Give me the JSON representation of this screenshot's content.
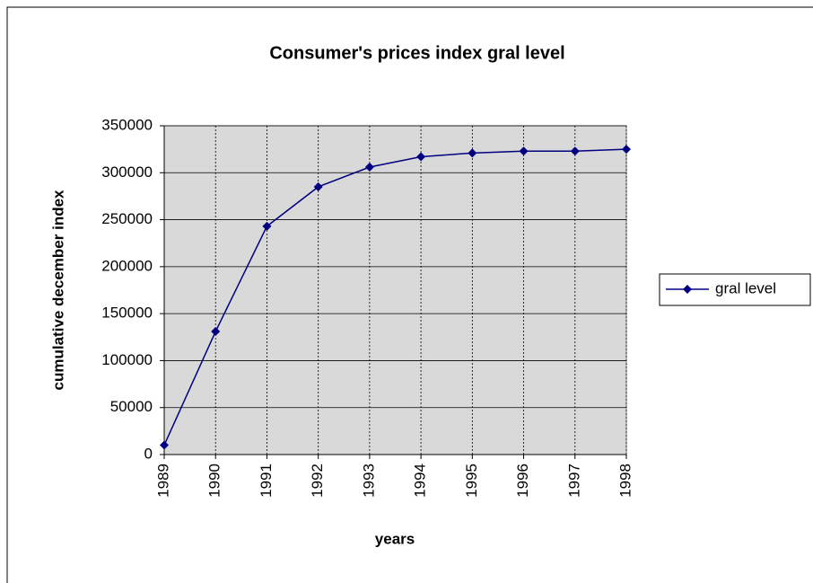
{
  "chart_data": {
    "type": "line",
    "title": "Consumer's prices index gral level",
    "x_label": "years",
    "y_label": "cumulative december index",
    "categories": [
      "1989",
      "1990",
      "1991",
      "1992",
      "1993",
      "1994",
      "1995",
      "1996",
      "1997",
      "1998"
    ],
    "series": [
      {
        "name": "gral level",
        "color": "#000080",
        "values": [
          10000,
          131000,
          243000,
          285000,
          306000,
          317000,
          321000,
          323000,
          323000,
          325000
        ]
      }
    ],
    "ylim": [
      0,
      350000
    ],
    "yticks": [
      0,
      50000,
      100000,
      150000,
      200000,
      250000,
      300000,
      350000
    ],
    "grid": true,
    "legend": "right"
  }
}
